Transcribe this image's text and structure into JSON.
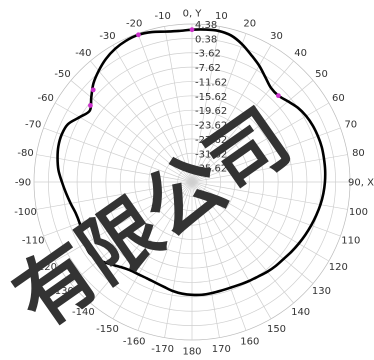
{
  "chart_data": {
    "type": "polar-line",
    "title": "",
    "angle_labels": [
      {
        "deg": 0,
        "text": "0, Y"
      },
      {
        "deg": 10,
        "text": "10"
      },
      {
        "deg": 20,
        "text": "20"
      },
      {
        "deg": 30,
        "text": "30"
      },
      {
        "deg": 40,
        "text": "40"
      },
      {
        "deg": 50,
        "text": "50"
      },
      {
        "deg": 60,
        "text": "60"
      },
      {
        "deg": 70,
        "text": "70"
      },
      {
        "deg": 80,
        "text": "80"
      },
      {
        "deg": 90,
        "text": "90, X"
      },
      {
        "deg": 100,
        "text": "100"
      },
      {
        "deg": 110,
        "text": "110"
      },
      {
        "deg": 120,
        "text": "120"
      },
      {
        "deg": 130,
        "text": "130"
      },
      {
        "deg": 140,
        "text": "140"
      },
      {
        "deg": 150,
        "text": "150"
      },
      {
        "deg": 160,
        "text": "160"
      },
      {
        "deg": 170,
        "text": "170"
      },
      {
        "deg": 180,
        "text": "180"
      },
      {
        "deg": -170,
        "text": "-170"
      },
      {
        "deg": -160,
        "text": "-160"
      },
      {
        "deg": -150,
        "text": "-150"
      },
      {
        "deg": -140,
        "text": "-140"
      },
      {
        "deg": -130,
        "text": "-130"
      },
      {
        "deg": -120,
        "text": "-120"
      },
      {
        "deg": -110,
        "text": "-110"
      },
      {
        "deg": -100,
        "text": "-100"
      },
      {
        "deg": -90,
        "text": "-90"
      },
      {
        "deg": -80,
        "text": "-80"
      },
      {
        "deg": -70,
        "text": "-70"
      },
      {
        "deg": -60,
        "text": "-60"
      },
      {
        "deg": -50,
        "text": "-50"
      },
      {
        "deg": -40,
        "text": "-40"
      },
      {
        "deg": -30,
        "text": "-30"
      },
      {
        "deg": -20,
        "text": "-20"
      },
      {
        "deg": -10,
        "text": "-10"
      }
    ],
    "radial_ticks": [
      "4.38",
      "0.38",
      "-3.62",
      "-7.62",
      "-11.62",
      "-15.62",
      "-19.62",
      "-23.62",
      "-27.62",
      "-31.62",
      "-35.62"
    ],
    "r_range": [
      -39.62,
      4.38
    ],
    "series": [
      {
        "color": "#000000",
        "points": [
          {
            "deg": 0,
            "val": 2.8
          },
          {
            "deg": 5,
            "val": 3.0
          },
          {
            "deg": 10,
            "val": 3.1
          },
          {
            "deg": 15,
            "val": 2.6
          },
          {
            "deg": 20,
            "val": 1.2
          },
          {
            "deg": 25,
            "val": -0.6
          },
          {
            "deg": 30,
            "val": -2.2
          },
          {
            "deg": 35,
            "val": -4.0
          },
          {
            "deg": 40,
            "val": -5.4
          },
          {
            "deg": 45,
            "val": -5.6
          },
          {
            "deg": 50,
            "val": -4.7
          },
          {
            "deg": 55,
            "val": -3.6
          },
          {
            "deg": 60,
            "val": -2.9
          },
          {
            "deg": 65,
            "val": -2.5
          },
          {
            "deg": 70,
            "val": -2.3
          },
          {
            "deg": 75,
            "val": -2.2
          },
          {
            "deg": 80,
            "val": -2.3
          },
          {
            "deg": 85,
            "val": -2.4
          },
          {
            "deg": 90,
            "val": -2.6
          },
          {
            "deg": 95,
            "val": -2.9
          },
          {
            "deg": 100,
            "val": -3.3
          },
          {
            "deg": 105,
            "val": -3.8
          },
          {
            "deg": 110,
            "val": -4.3
          },
          {
            "deg": 115,
            "val": -4.8
          },
          {
            "deg": 120,
            "val": -5.3
          },
          {
            "deg": 125,
            "val": -5.8
          },
          {
            "deg": 130,
            "val": -6.3
          },
          {
            "deg": 135,
            "val": -6.6
          },
          {
            "deg": 140,
            "val": -7.0
          },
          {
            "deg": 145,
            "val": -7.5
          },
          {
            "deg": 150,
            "val": -7.8
          },
          {
            "deg": 155,
            "val": -8.1
          },
          {
            "deg": 160,
            "val": -8.3
          },
          {
            "deg": 165,
            "val": -8.3
          },
          {
            "deg": 170,
            "val": -8.2
          },
          {
            "deg": 175,
            "val": -8.1
          },
          {
            "deg": 180,
            "val": -8.2
          },
          {
            "deg": -175,
            "val": -8.4
          },
          {
            "deg": -170,
            "val": -8.8
          },
          {
            "deg": -165,
            "val": -9.4
          },
          {
            "deg": -160,
            "val": -9.8
          },
          {
            "deg": -155,
            "val": -10.0
          },
          {
            "deg": -150,
            "val": -9.9
          },
          {
            "deg": -145,
            "val": -9.6
          },
          {
            "deg": -140,
            "val": -8.7
          },
          {
            "deg": -135,
            "val": -7.3
          },
          {
            "deg": -130,
            "val": -5.8
          },
          {
            "deg": -125,
            "val": -4.9
          },
          {
            "deg": -120,
            "val": -5.2
          },
          {
            "deg": -115,
            "val": -5.9
          },
          {
            "deg": -110,
            "val": -6.3
          },
          {
            "deg": -105,
            "val": -6.1
          },
          {
            "deg": -100,
            "val": -5.3
          },
          {
            "deg": -95,
            "val": -4.4
          },
          {
            "deg": -90,
            "val": -3.4
          },
          {
            "deg": -85,
            "val": -2.3
          },
          {
            "deg": -80,
            "val": -1.6
          },
          {
            "deg": -75,
            "val": -1.1
          },
          {
            "deg": -70,
            "val": -1.0
          },
          {
            "deg": -65,
            "val": -1.5
          },
          {
            "deg": -60,
            "val": -3.5
          },
          {
            "deg": -55,
            "val": -4.9
          },
          {
            "deg": -50,
            "val": -3.0
          },
          {
            "deg": -45,
            "val": -0.8
          },
          {
            "deg": -40,
            "val": 0.8
          },
          {
            "deg": -35,
            "val": 2.2
          },
          {
            "deg": -30,
            "val": 3.2
          },
          {
            "deg": -25,
            "val": 3.8
          },
          {
            "deg": -20,
            "val": 4.0
          },
          {
            "deg": -15,
            "val": 3.6
          },
          {
            "deg": -10,
            "val": 2.9
          },
          {
            "deg": -5,
            "val": 2.6
          }
        ]
      }
    ],
    "markers": [
      {
        "deg": -53,
        "val": -4.2,
        "color": "#cc33cc"
      },
      {
        "deg": -47,
        "val": -2.0,
        "color": "#cc33cc"
      },
      {
        "deg": -20,
        "val": 4.0,
        "color": "#cc33cc"
      },
      {
        "deg": 0,
        "val": 2.8,
        "color": "#cc33cc"
      },
      {
        "deg": 45,
        "val": -5.6,
        "color": "#cc33cc"
      }
    ],
    "grid": true,
    "grid_color": "#cfcfcf",
    "label_color": "#333333"
  },
  "watermark": {
    "text": "有限公司",
    "color": "rgba(150,150,150,0.35)"
  }
}
